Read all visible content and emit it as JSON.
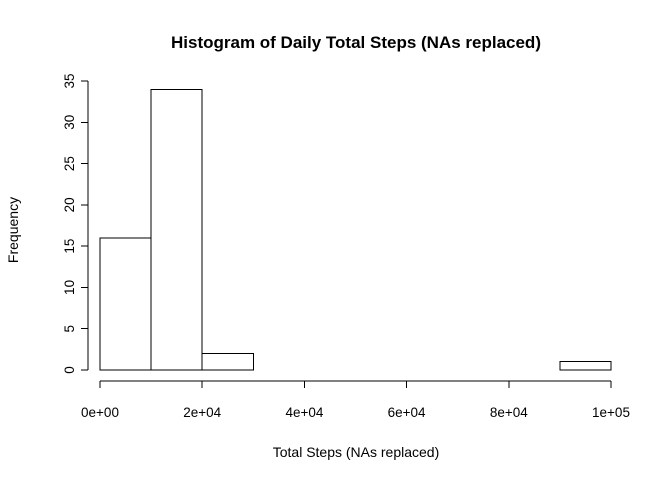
{
  "chart_data": {
    "type": "bar",
    "title": "Histogram of Daily Total Steps (NAs replaced)",
    "xlabel": "Total Steps (NAs replaced)",
    "ylabel": "Frequency",
    "xlim": [
      0,
      100000
    ],
    "ylim": [
      0,
      35
    ],
    "bin_width": 10000,
    "bins": [
      {
        "x0": 0,
        "x1": 10000,
        "count": 16
      },
      {
        "x0": 10000,
        "x1": 20000,
        "count": 34
      },
      {
        "x0": 20000,
        "x1": 30000,
        "count": 2
      },
      {
        "x0": 30000,
        "x1": 40000,
        "count": 0
      },
      {
        "x0": 40000,
        "x1": 50000,
        "count": 0
      },
      {
        "x0": 50000,
        "x1": 60000,
        "count": 0
      },
      {
        "x0": 60000,
        "x1": 70000,
        "count": 0
      },
      {
        "x0": 70000,
        "x1": 80000,
        "count": 0
      },
      {
        "x0": 80000,
        "x1": 90000,
        "count": 0
      },
      {
        "x0": 90000,
        "x1": 100000,
        "count": 1
      }
    ],
    "x_ticks": [
      {
        "value": 0,
        "label": "0e+00"
      },
      {
        "value": 20000,
        "label": "2e+04"
      },
      {
        "value": 40000,
        "label": "4e+04"
      },
      {
        "value": 60000,
        "label": "6e+04"
      },
      {
        "value": 80000,
        "label": "8e+04"
      },
      {
        "value": 100000,
        "label": "1e+05"
      }
    ],
    "y_ticks": [
      {
        "value": 0,
        "label": "0"
      },
      {
        "value": 5,
        "label": "5"
      },
      {
        "value": 10,
        "label": "10"
      },
      {
        "value": 15,
        "label": "15"
      },
      {
        "value": 20,
        "label": "20"
      },
      {
        "value": 25,
        "label": "25"
      },
      {
        "value": 30,
        "label": "30"
      },
      {
        "value": 35,
        "label": "35"
      }
    ],
    "grid": false,
    "legend": "none"
  }
}
